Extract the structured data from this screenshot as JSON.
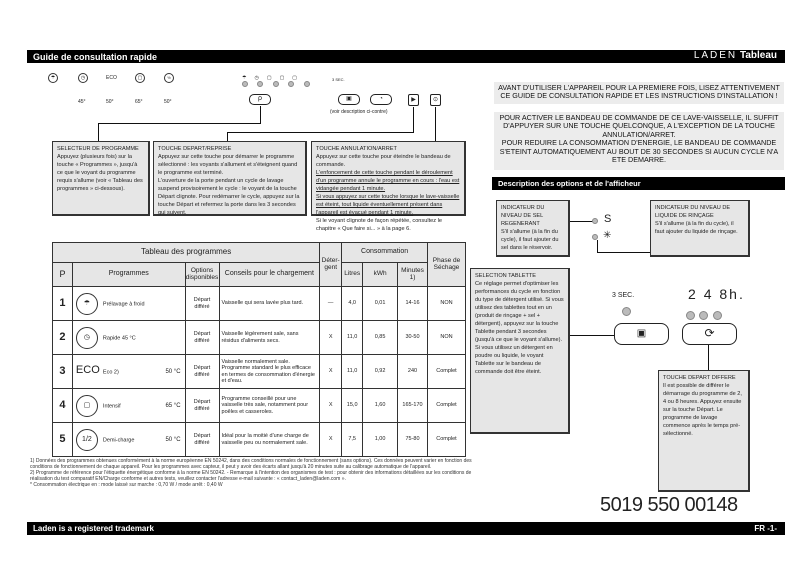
{
  "header": {
    "title": "Guide de consultation rapide",
    "brand": "LADEN",
    "subtitle": "Tableau"
  },
  "panel": {
    "temps": [
      "45°",
      "50°",
      "65°",
      "50°"
    ],
    "eco": "ECO",
    "sec_label": "3 SEC.",
    "hours": [
      "2",
      "4",
      "8h."
    ],
    "voir": "(voir description ci-contre)"
  },
  "callouts": {
    "selecteur": {
      "title": "SELECTEUR DE PROGRAMME",
      "text": "Appuyez (plusieurs fois) sur la touche « Programmes », jusqu'à ce que le voyant du programme requis s'allume (voir « Tableau des programmes » ci-dessous)."
    },
    "depart": {
      "title": "TOUCHE DEPART/REPRISE",
      "text1": "Appuyez sur cette touche pour démarrer le programme sélectionné : les voyants s'allument et s'éteignent quand le programme est terminé.",
      "text2": "L'ouverture de la porte pendant un cycle de lavage suspend provisoirement le cycle : le voyant de la touche Départ clignote. Pour redémarrer le cycle, appuyez sur la touche Départ et refermez la porte dans les 3 secondes qui suivent."
    },
    "annulation": {
      "title": "TOUCHE ANNULATION/ARRET",
      "text1": "Appuyez sur cette touche pour éteindre le bandeau de commande.",
      "text2": "L'enfoncement de cette touche pendant le déroulement d'un programme annule le programme en cours : l'eau est vidangée pendant 1 minute.",
      "text3": "Si vous appuyez sur cette touche lorsque le lave-vaisselle est éteint, tout liquide éventuellement présent dans l'appareil est évacué pendant 1 minute.",
      "text4": "Si le voyant clignote de façon répétée, consultez le chapitre « Que faire si... » à la page 6."
    }
  },
  "notices": {
    "first": "AVANT D'UTILISER L'APPAREIL POUR LA PREMIERE FOIS, LISEZ ATTENTIVEMENT CE GUIDE DE CONSULTATION RAPIDE ET LES INSTRUCTIONS D'INSTALLATION !",
    "second": "POUR ACTIVER LE BANDEAU DE COMMANDE DE CE LAVE-VAISSELLE, IL SUFFIT D'APPUYER SUR UNE TOUCHE QUELCONQUE, A L'EXCEPTION DE LA TOUCHE ANNULATION/ARRET.",
    "third": "POUR REDUIRE LA CONSOMMATION D'ENERGIE, LE BANDEAU DE COMMANDE S'ETEINT AUTOMATIQUEMENT AU BOUT DE 30 SECONDES SI AUCUN CYCLE N'A ETE DEMARRE."
  },
  "options_title": "Description des options et de l'afficheur",
  "indicators": {
    "sel": {
      "title": "INDICATEUR DU NIVEAU DE SEL REGENERANT",
      "text": "S'il s'allume (à la fin du cycle), il faut ajouter du sel dans le réservoir."
    },
    "rincage": {
      "title": "INDICATEUR DU NIVEAU DE LIQUIDE DE RINÇAGE",
      "text": "S'il s'allume (à la fin du cycle), il faut ajouter du liquide de rinçage."
    },
    "tablette": {
      "title": "SELECTION TABLETTE",
      "text": "Ce réglage permet d'optimiser les performances du cycle en fonction du type de détergent utilisé. Si vous utilisez des tablettes tout en un (produit de rinçage + sel + détergent), appuyez sur la touche Tablette pendant 3 secondes (jusqu'à ce que le voyant s'allume). Si vous utilisez un détergent en poudre ou liquide, le voyant Tablette sur le bandeau de commande doit être éteint."
    },
    "differe": {
      "title": "TOUCHE DEPART DIFFERE",
      "text": "Il est possible de différer le démarrage du programme de 2, 4 ou 8 heures. Appuyez ensuite sur la touche Départ. Le programme de lavage commence après le temps pré-sélectionné."
    }
  },
  "table": {
    "title": "Tableau des programmes",
    "consommation": "Consommation",
    "headers": {
      "p": "P",
      "programmes": "Programmes",
      "options": "Options disponibles",
      "conseils": "Conseils pour le chargement",
      "detergent": "Déter-gent",
      "litres": "Litres",
      "kwh": "kWh",
      "minutes": "Minutes 1)",
      "sechage": "Phase de Séchage"
    },
    "rows": [
      {
        "p": "1",
        "icon": "cold-rinse-icon",
        "glyph": "☂",
        "name": "Prélavage à froid",
        "temp": "",
        "options": "Départ différé",
        "conseils": "Vaisselle qui sera lavée plus tard.",
        "detergent": "—",
        "litres": "4,0",
        "kwh": "0,01",
        "minutes": "14-16",
        "sechage": "NON"
      },
      {
        "p": "2",
        "icon": "quick-clock-icon",
        "glyph": "◷",
        "name": "Rapide 45 °C",
        "temp": "",
        "options": "Départ différé",
        "conseils": "Vaisselle légèrement sale, sans résidus d'aliments secs.",
        "detergent": "X",
        "litres": "11,0",
        "kwh": "0,85",
        "minutes": "30-50",
        "sechage": "NON"
      },
      {
        "p": "3",
        "icon": "eco-icon",
        "glyph": "ECO",
        "name": "Eco 2)",
        "temp": "50 °C",
        "options": "Départ différé",
        "conseils": "Vaisselle normalement sale. Programme standard le plus efficace en termes de consommation d'énergie et d'eau.",
        "detergent": "X",
        "litres": "11,0",
        "kwh": "0,92",
        "minutes": "240",
        "sechage": "Complet"
      },
      {
        "p": "4",
        "icon": "pot-icon",
        "glyph": "▢",
        "name": "Intensif",
        "temp": "65 °C",
        "options": "Départ différé",
        "conseils": "Programme conseillé pour une vaisselle très sale, notamment pour poêles et casseroles.",
        "detergent": "X",
        "litres": "15,0",
        "kwh": "1,60",
        "minutes": "165-170",
        "sechage": "Complet"
      },
      {
        "p": "5",
        "icon": "half-load-icon",
        "glyph": "1/2",
        "name": "Demi-charge",
        "temp": "50 °C",
        "options": "Départ différé",
        "conseils": "Idéal pour la moitié d'une charge de vaisselle peu ou normalement sale.",
        "detergent": "X",
        "litres": "7,5",
        "kwh": "1,00",
        "minutes": "75-80",
        "sechage": "Complet"
      }
    ]
  },
  "footnotes": [
    "1)   Données des programmes obtenues conformément à la norme européenne EN 50242, dans des conditions normales de fonctionnement (sans options). Ces données peuvent varier en fonction des conditions de fonctionnement de chaque appareil. Pour les programmes avec capteur, il peut y avoir des écarts allant jusqu'à 20 minutes suite au calibrage automatique de l'appareil.",
    "2)   Programme de référence pour l'étiquette énergétique conforme à la norme EN 50242. - Remarque à l'intention des organismes de test : pour obtenir des informations détaillées sur les conditions de réalisation du test comparatif EN/Charge conforme et autres tests, veuillez contacter l'adresse e-mail suivante : « contact_laden@laden.com ».",
    "* Consommation électrique en : mode laissé sur marche : 0,70 W / mode arrêt : 0,40 W"
  ],
  "barcode_number": "5019 550 00148",
  "footer": {
    "left": "Laden is a registered trademark",
    "right": "FR -1-"
  }
}
